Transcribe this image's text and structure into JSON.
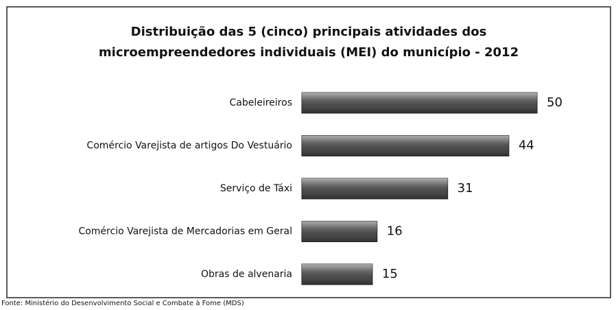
{
  "chart_data": {
    "type": "hbar",
    "title": [
      "Distribuição das 5 (cinco) principais atividades dos",
      "microempreendedores individuais (MEI) do município - 2012"
    ],
    "categories": [
      "Cabeleireiros",
      "Comércio Varejista de artigos Do Vestuário",
      "Serviço de Táxi",
      "Comércio Varejista de Mercadorias em Geral",
      "Obras de alvenaria"
    ],
    "values": [
      50,
      44,
      31,
      16,
      15
    ],
    "color": "#4d4d4d",
    "source": "Fonte: Ministério do Desenvolvimento Social e Combate à Fome (MDS)"
  }
}
